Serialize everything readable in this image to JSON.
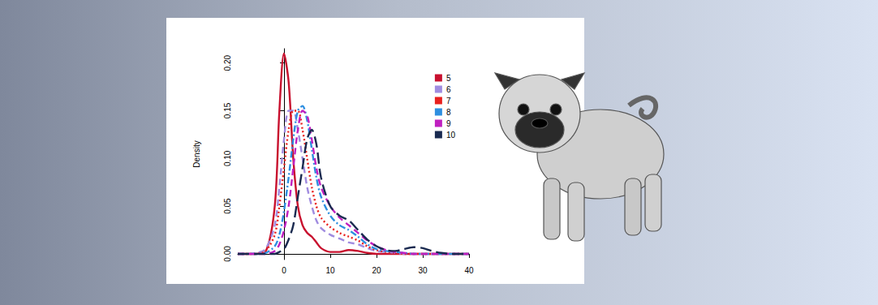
{
  "chart_data": {
    "type": "line",
    "y_label": "Density",
    "x": [
      -10,
      -8,
      -6,
      -4,
      -2,
      -1,
      0,
      1,
      2,
      3,
      4,
      5,
      6,
      7,
      8,
      10,
      12,
      14,
      16,
      18,
      20,
      22,
      24,
      26,
      28,
      30,
      32,
      34,
      36,
      38,
      40
    ],
    "xlim": [
      -10,
      40
    ],
    "xticks": [
      0,
      10,
      20,
      30,
      40
    ],
    "ylim": [
      -0.006,
      0.215
    ],
    "yticks": [
      {
        "value": 0,
        "label": "0.00"
      },
      {
        "value": 0.05,
        "label": "0.05"
      },
      {
        "value": 0.1,
        "label": "0.10"
      },
      {
        "value": 0.15,
        "label": "0.15"
      },
      {
        "value": 0.2,
        "label": "0.20"
      }
    ],
    "grid": false,
    "legend": "top right",
    "series": [
      {
        "name": "5",
        "color": "#c8102e",
        "line_style": "solid",
        "values": [
          0,
          0,
          0,
          0.002,
          0.05,
          0.15,
          0.21,
          0.18,
          0.1,
          0.05,
          0.03,
          0.022,
          0.018,
          0.012,
          0.006,
          0.002,
          0.002,
          0.004,
          0.003,
          0.001,
          0,
          0,
          0,
          0,
          0,
          0,
          0,
          0,
          0,
          0,
          0
        ]
      },
      {
        "name": "6",
        "color": "#a08ce0",
        "line_style": "dashed",
        "values": [
          0,
          0,
          0.001,
          0.005,
          0.03,
          0.07,
          0.12,
          0.15,
          0.15,
          0.13,
          0.1,
          0.07,
          0.05,
          0.035,
          0.027,
          0.02,
          0.016,
          0.012,
          0.01,
          0.006,
          0.003,
          0.002,
          0.001,
          0,
          0,
          0,
          0,
          0,
          0,
          0,
          0
        ]
      },
      {
        "name": "7",
        "color": "#e8201e",
        "line_style": "dotted",
        "values": [
          0,
          0,
          0,
          0.003,
          0.02,
          0.05,
          0.09,
          0.13,
          0.15,
          0.15,
          0.13,
          0.1,
          0.07,
          0.05,
          0.038,
          0.028,
          0.022,
          0.018,
          0.014,
          0.008,
          0.004,
          0.002,
          0.001,
          0,
          0,
          0,
          0,
          0,
          0,
          0,
          0
        ]
      },
      {
        "name": "8",
        "color": "#2e8fe0",
        "line_style": "dashdot",
        "values": [
          0,
          0,
          0,
          0.001,
          0.008,
          0.02,
          0.045,
          0.08,
          0.12,
          0.15,
          0.155,
          0.14,
          0.11,
          0.08,
          0.06,
          0.04,
          0.03,
          0.025,
          0.018,
          0.01,
          0.005,
          0.003,
          0.002,
          0.001,
          0,
          0,
          0,
          0,
          0,
          0,
          0
        ]
      },
      {
        "name": "9",
        "color": "#c020c0",
        "line_style": "dashed",
        "values": [
          0,
          0,
          0,
          0,
          0.003,
          0.01,
          0.025,
          0.05,
          0.09,
          0.13,
          0.15,
          0.145,
          0.12,
          0.09,
          0.07,
          0.05,
          0.038,
          0.03,
          0.022,
          0.014,
          0.008,
          0.004,
          0.002,
          0.001,
          0,
          0,
          0,
          0,
          0,
          0,
          0
        ]
      },
      {
        "name": "10",
        "color": "#1a2a50",
        "line_style": "longdash",
        "values": [
          0,
          0,
          0,
          0,
          0,
          0.002,
          0.005,
          0.015,
          0.03,
          0.06,
          0.09,
          0.12,
          0.13,
          0.115,
          0.08,
          0.05,
          0.04,
          0.035,
          0.025,
          0.015,
          0.008,
          0.004,
          0.003,
          0.005,
          0.007,
          0.006,
          0.003,
          0.001,
          0,
          0,
          0
        ]
      }
    ]
  }
}
